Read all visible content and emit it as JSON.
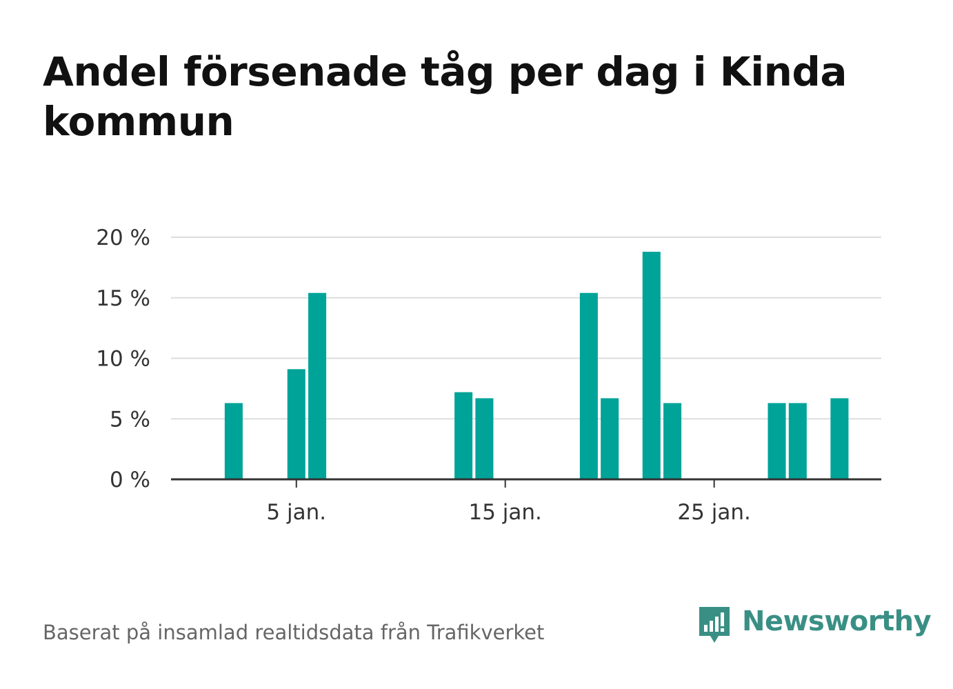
{
  "title": "Andel försenade tåg per dag i Kinda kommun",
  "source": "Baserat på insamlad realtidsdata från Trafikverket",
  "logo": {
    "text": "Newsworthy",
    "icon": "chart-speech-bubble-icon",
    "color": "#3a8f85"
  },
  "chart_data": {
    "type": "bar",
    "title": "Andel försenade tåg per dag i Kinda kommun",
    "xlabel": "",
    "ylabel": "",
    "bar_color": "#00a398",
    "grid": true,
    "ylim": [
      0,
      20
    ],
    "y_ticks": [
      {
        "value": 0,
        "label": "0 %"
      },
      {
        "value": 5,
        "label": "5 %"
      },
      {
        "value": 10,
        "label": "10 %"
      },
      {
        "value": 15,
        "label": "15 %"
      },
      {
        "value": 20,
        "label": "20 %"
      }
    ],
    "x_ticks": [
      {
        "day": 5,
        "label": "5 jan."
      },
      {
        "day": 15,
        "label": "15 jan."
      },
      {
        "day": 25,
        "label": "25 jan."
      }
    ],
    "xlim_days": [
      -1,
      33
    ],
    "categories": [
      "2 jan.",
      "5 jan.",
      "6 jan.",
      "13 jan.",
      "14 jan.",
      "19 jan.",
      "20 jan.",
      "22 jan.",
      "23 jan.",
      "28 jan.",
      "29 jan.",
      "31 jan."
    ],
    "days": [
      2,
      5,
      6,
      13,
      14,
      19,
      20,
      22,
      23,
      28,
      29,
      31
    ],
    "values": [
      6.3,
      9.1,
      15.4,
      7.2,
      6.7,
      15.4,
      6.7,
      18.8,
      6.3,
      6.3,
      6.3,
      6.7
    ]
  }
}
